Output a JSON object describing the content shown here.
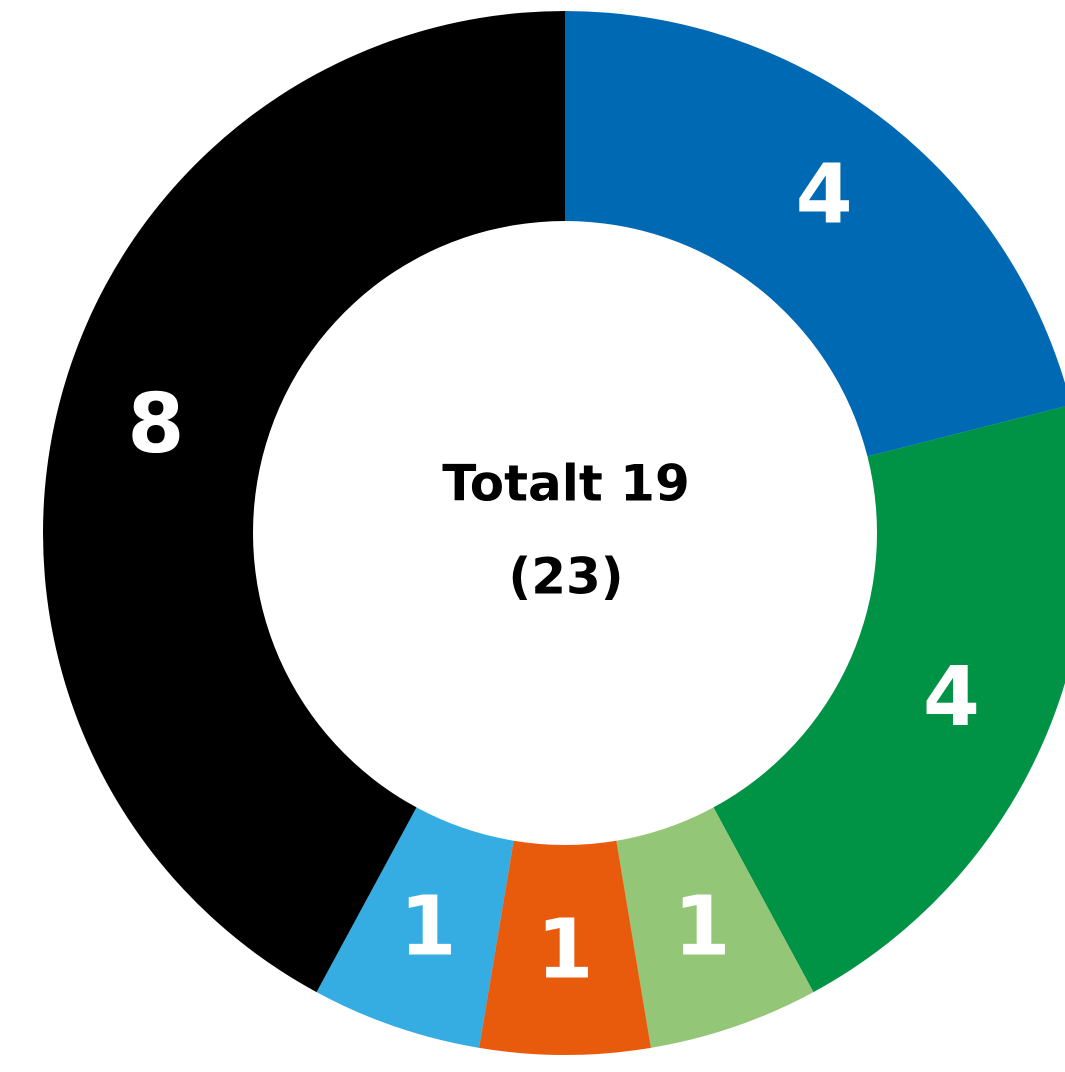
{
  "chart_data": {
    "type": "donut",
    "center_text": [
      "Totalt 19",
      "(23)"
    ],
    "values": [
      4,
      4,
      1,
      1,
      1,
      8
    ],
    "colors": [
      "#0069b4",
      "#009245",
      "#94c678",
      "#e95b0c",
      "#35ace2",
      "#000000"
    ]
  }
}
